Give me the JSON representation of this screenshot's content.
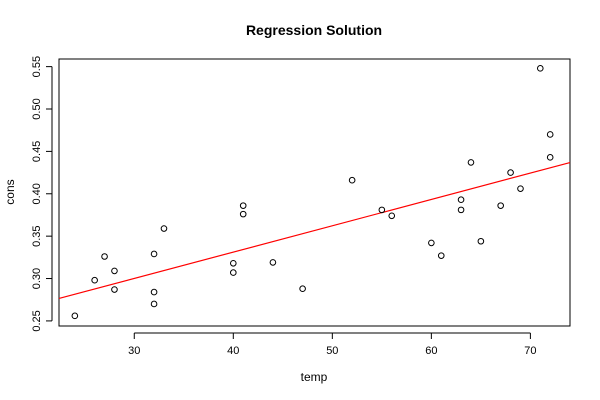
{
  "chart_data": {
    "type": "scatter",
    "title": "Regression Solution",
    "xlabel": "temp",
    "ylabel": "cons",
    "xlim": [
      22.4,
      74
    ],
    "ylim": [
      0.244,
      0.559
    ],
    "x_ticks": [
      30,
      40,
      50,
      60,
      70
    ],
    "y_ticks": [
      0.25,
      0.3,
      0.35,
      0.4,
      0.45,
      0.5,
      0.55
    ],
    "grid": false,
    "points": [
      {
        "x": 24,
        "y": 0.256
      },
      {
        "x": 26,
        "y": 0.298
      },
      {
        "x": 27,
        "y": 0.326
      },
      {
        "x": 28,
        "y": 0.309
      },
      {
        "x": 28,
        "y": 0.287
      },
      {
        "x": 32,
        "y": 0.329
      },
      {
        "x": 32,
        "y": 0.284
      },
      {
        "x": 32,
        "y": 0.27
      },
      {
        "x": 33,
        "y": 0.359
      },
      {
        "x": 40,
        "y": 0.318
      },
      {
        "x": 40,
        "y": 0.307
      },
      {
        "x": 41,
        "y": 0.386
      },
      {
        "x": 41,
        "y": 0.376
      },
      {
        "x": 44,
        "y": 0.319
      },
      {
        "x": 47,
        "y": 0.288
      },
      {
        "x": 52,
        "y": 0.416
      },
      {
        "x": 55,
        "y": 0.381
      },
      {
        "x": 56,
        "y": 0.374
      },
      {
        "x": 60,
        "y": 0.342
      },
      {
        "x": 61,
        "y": 0.327
      },
      {
        "x": 63,
        "y": 0.393
      },
      {
        "x": 63,
        "y": 0.381
      },
      {
        "x": 64,
        "y": 0.437
      },
      {
        "x": 65,
        "y": 0.344
      },
      {
        "x": 67,
        "y": 0.386
      },
      {
        "x": 68,
        "y": 0.425
      },
      {
        "x": 69,
        "y": 0.406
      },
      {
        "x": 71,
        "y": 0.548
      },
      {
        "x": 72,
        "y": 0.47
      },
      {
        "x": 72,
        "y": 0.443
      }
    ],
    "regression_line": {
      "color": "#ff0000",
      "intercept": 0.2069,
      "slope": 0.003107
    },
    "point_color": "#000000"
  }
}
